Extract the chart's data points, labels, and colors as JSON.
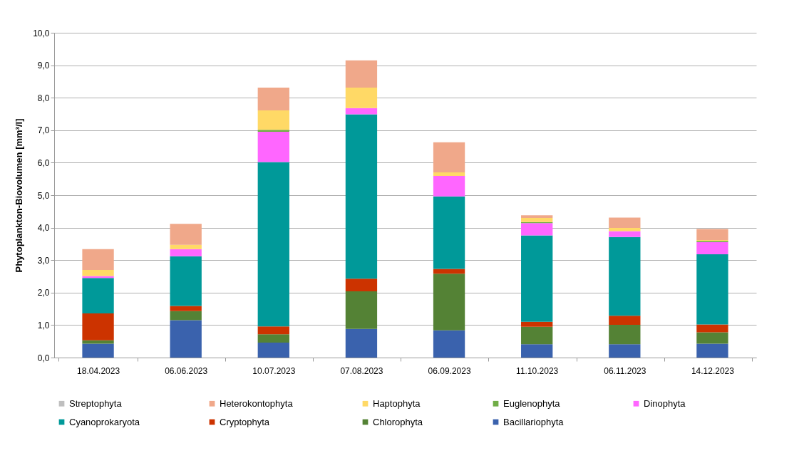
{
  "chart_data": {
    "type": "bar",
    "stacked": true,
    "ylabel": "Phytoplankton-Biovolumen [mm³/l]",
    "categories": [
      "18.04.2023",
      "06.06.2023",
      "10.07.2023",
      "07.08.2023",
      "06.09.2023",
      "11.10.2023",
      "06.11.2023",
      "14.12.2023"
    ],
    "series": [
      {
        "name": "Bacillariophyta",
        "color": "#3a62ad",
        "values": [
          0.43,
          1.15,
          0.46,
          0.88,
          0.84,
          0.41,
          0.41,
          0.43
        ]
      },
      {
        "name": "Chlorophyta",
        "color": "#548235",
        "values": [
          0.1,
          0.28,
          0.26,
          1.16,
          1.74,
          0.54,
          0.6,
          0.35
        ]
      },
      {
        "name": "Cryptophyta",
        "color": "#cc3300",
        "values": [
          0.83,
          0.16,
          0.24,
          0.39,
          0.15,
          0.15,
          0.28,
          0.24
        ]
      },
      {
        "name": "Cyanoprokaryota",
        "color": "#009999",
        "values": [
          1.09,
          1.53,
          5.06,
          5.06,
          2.23,
          2.66,
          2.42,
          2.16
        ]
      },
      {
        "name": "Dinophyta",
        "color": "#ff66ff",
        "values": [
          0.06,
          0.22,
          0.93,
          0.19,
          0.63,
          0.38,
          0.18,
          0.37
        ]
      },
      {
        "name": "Euglenophyta",
        "color": "#70ad47",
        "values": [
          0,
          0,
          0.06,
          0,
          0,
          0.03,
          0,
          0.04
        ]
      },
      {
        "name": "Haptophyta",
        "color": "#ffd966",
        "values": [
          0.19,
          0.13,
          0.6,
          0.63,
          0.11,
          0.13,
          0.1,
          0.03
        ]
      },
      {
        "name": "Heterokontophyta",
        "color": "#f0a88a",
        "values": [
          0.64,
          0.65,
          0.7,
          0.84,
          0.93,
          0.08,
          0.32,
          0.34
        ]
      },
      {
        "name": "Streptophyta",
        "color": "#bfbfbf",
        "values": [
          0,
          0,
          0,
          0,
          0,
          0,
          0,
          0
        ]
      }
    ],
    "ylim": [
      0,
      10
    ],
    "yticks": [
      {
        "value": 0,
        "label": "0,0"
      },
      {
        "value": 1,
        "label": "1,0"
      },
      {
        "value": 2,
        "label": "2,0"
      },
      {
        "value": 3,
        "label": "3,0"
      },
      {
        "value": 4,
        "label": "4,0"
      },
      {
        "value": 5,
        "label": "5,0"
      },
      {
        "value": 6,
        "label": "6,0"
      },
      {
        "value": 7,
        "label": "7,0"
      },
      {
        "value": 8,
        "label": "8,0"
      },
      {
        "value": 9,
        "label": "9,0"
      },
      {
        "value": 10,
        "label": "10,0"
      }
    ],
    "grid": "y",
    "legend": "bottom"
  }
}
